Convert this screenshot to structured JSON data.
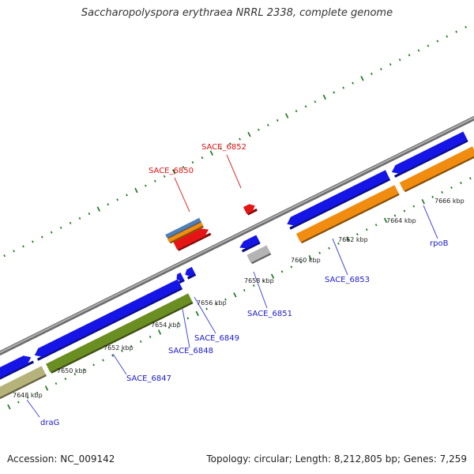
{
  "title": "Saccharopolyspora erythraea NRRL 2338, complete genome",
  "footer": {
    "accession": "Accession: NC_009142",
    "summary": "Topology: circular; Length: 8,212,805 bp; Genes: 7,259"
  },
  "colors": {
    "backbone": "#8c8c8c",
    "tick": "#1e7a1e",
    "label_forward": "#1a1acc",
    "label_reverse": "#dd1111",
    "leader_forward": "#4a4ae0",
    "leader_reverse": "#e03030",
    "scale_text": "#222222"
  },
  "scale_labels": [
    "7648 kbp",
    "7650 kbp",
    "7652 kbp",
    "7654 kbp",
    "7656 kbp",
    "7658 kbp",
    "7660 kbp",
    "7662 kbp",
    "7664 kbp",
    "7666 kbp"
  ],
  "gene_labels": [
    {
      "text": "draG",
      "strand": "forward"
    },
    {
      "text": "SACE_6847",
      "strand": "forward"
    },
    {
      "text": "SACE_6848",
      "strand": "forward"
    },
    {
      "text": "SACE_6849",
      "strand": "forward"
    },
    {
      "text": "SACE_6850",
      "strand": "reverse"
    },
    {
      "text": "SACE_6851",
      "strand": "forward"
    },
    {
      "text": "SACE_6852",
      "strand": "reverse"
    },
    {
      "text": "SACE_6853",
      "strand": "forward"
    },
    {
      "text": "rpoB",
      "strand": "forward"
    }
  ],
  "features": [
    {
      "name": "blue-cds-far-left",
      "color": "#1515e6"
    },
    {
      "name": "olive-feature-left",
      "color": "#b5b27a"
    },
    {
      "name": "blue-cds-long",
      "color": "#1515e6"
    },
    {
      "name": "green-feature-long",
      "color": "#6b8e23"
    },
    {
      "name": "blue-cds-small-a",
      "color": "#1515e6"
    },
    {
      "name": "blue-cds-small-b",
      "color": "#1515e6"
    },
    {
      "name": "blue-cds-mid",
      "color": "#1515e6"
    },
    {
      "name": "gray-feature",
      "color": "#b4b4b4"
    },
    {
      "name": "reverse-stack-blue",
      "color": "#4f7fb5"
    },
    {
      "name": "reverse-stack-orange",
      "color": "#f08c10"
    },
    {
      "name": "reverse-red-cds",
      "color": "#e61515"
    },
    {
      "name": "reverse-red-small",
      "color": "#e61515"
    },
    {
      "name": "blue-cds-right-a",
      "color": "#1515e6"
    },
    {
      "name": "orange-feature-right-a",
      "color": "#f08c10"
    },
    {
      "name": "blue-cds-right-b",
      "color": "#1515e6"
    },
    {
      "name": "orange-feature-right-b",
      "color": "#f08c10"
    },
    {
      "name": "edge-red-cds",
      "color": "#e61515"
    }
  ]
}
